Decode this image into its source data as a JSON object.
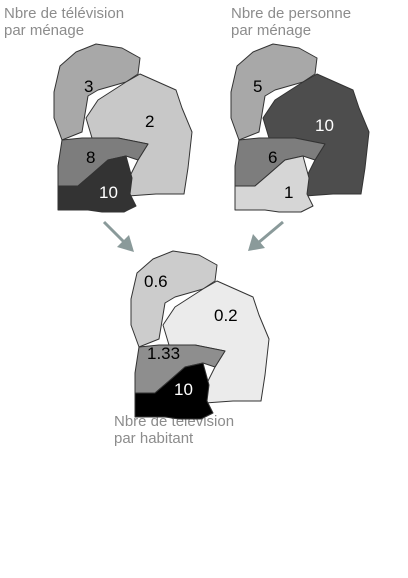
{
  "maps": [
    {
      "title_lines": [
        "Nbre de télévision",
        "par ménage"
      ],
      "regions": [
        {
          "value": "3",
          "fill": "#a8a8a8",
          "text_color": "#000000"
        },
        {
          "value": "2",
          "fill": "#c8c8c8",
          "text_color": "#000000"
        },
        {
          "value": "8",
          "fill": "#7d7d7d",
          "text_color": "#000000"
        },
        {
          "value": "10",
          "fill": "#333333",
          "text_color": "#ffffff"
        }
      ]
    },
    {
      "title_lines": [
        "Nbre de personne",
        "par ménage"
      ],
      "regions": [
        {
          "value": "5",
          "fill": "#a8a8a8",
          "text_color": "#000000"
        },
        {
          "value": "10",
          "fill": "#4d4d4d",
          "text_color": "#ffffff"
        },
        {
          "value": "6",
          "fill": "#7d7d7d",
          "text_color": "#000000"
        },
        {
          "value": "1",
          "fill": "#d6d6d6",
          "text_color": "#000000"
        }
      ]
    },
    {
      "title_lines": [
        "Nbre de télévision",
        "par habitant"
      ],
      "regions": [
        {
          "value": "0.6",
          "fill": "#cccccc",
          "text_color": "#000000"
        },
        {
          "value": "0.2",
          "fill": "#ebebeb",
          "text_color": "#000000"
        },
        {
          "value": "1.33",
          "fill": "#8e8e8e",
          "text_color": "#000000"
        },
        {
          "value": "10",
          "fill": "#000000",
          "text_color": "#ffffff"
        }
      ]
    }
  ],
  "arrow_color": "#8a9a9a"
}
